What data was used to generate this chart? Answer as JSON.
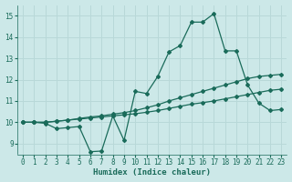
{
  "xlabel": "Humidex (Indice chaleur)",
  "xlim": [
    -0.5,
    23.5
  ],
  "ylim": [
    8.5,
    15.5
  ],
  "xticks": [
    0,
    1,
    2,
    3,
    4,
    5,
    6,
    7,
    8,
    9,
    10,
    11,
    12,
    13,
    14,
    15,
    16,
    17,
    18,
    19,
    20,
    21,
    22,
    23
  ],
  "yticks": [
    9,
    10,
    11,
    12,
    13,
    14,
    15
  ],
  "bg_color": "#cce8e8",
  "grid_color": "#b8d8d8",
  "line_color": "#1a6b5a",
  "line1_x": [
    0,
    1,
    2,
    3,
    4,
    5,
    6,
    7,
    8,
    9,
    10,
    11,
    12,
    13,
    14,
    15,
    16,
    17,
    18,
    19,
    20,
    21,
    22,
    23
  ],
  "line1_y": [
    10.0,
    10.0,
    9.95,
    9.7,
    9.75,
    9.8,
    8.62,
    8.65,
    10.3,
    9.15,
    11.45,
    11.35,
    12.15,
    13.3,
    13.6,
    14.7,
    14.7,
    15.1,
    13.35,
    13.35,
    11.75,
    10.9,
    10.55,
    10.6
  ],
  "line2_x": [
    0,
    1,
    2,
    3,
    4,
    5,
    6,
    7,
    8,
    9,
    10,
    11,
    12,
    13,
    14,
    15,
    16,
    17,
    18,
    19,
    20,
    21,
    22,
    23
  ],
  "line2_y": [
    10.0,
    10.0,
    10.0,
    10.05,
    10.1,
    10.15,
    10.2,
    10.25,
    10.3,
    10.35,
    10.4,
    10.47,
    10.55,
    10.65,
    10.75,
    10.85,
    10.92,
    11.0,
    11.1,
    11.2,
    11.3,
    11.4,
    11.5,
    11.55
  ],
  "line3_x": [
    0,
    1,
    2,
    3,
    4,
    5,
    6,
    7,
    8,
    9,
    10,
    11,
    12,
    13,
    14,
    15,
    16,
    17,
    18,
    19,
    20,
    21,
    22,
    23
  ],
  "line3_y": [
    10.0,
    10.0,
    10.0,
    10.05,
    10.1,
    10.18,
    10.25,
    10.3,
    10.38,
    10.45,
    10.55,
    10.68,
    10.82,
    11.0,
    11.15,
    11.3,
    11.45,
    11.6,
    11.75,
    11.9,
    12.05,
    12.15,
    12.2,
    12.25
  ]
}
